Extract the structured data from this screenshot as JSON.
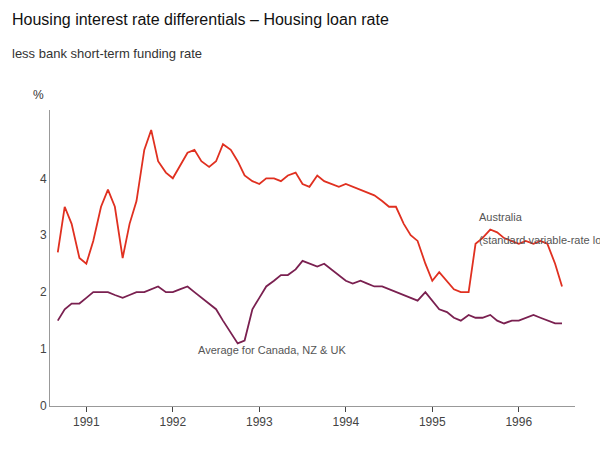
{
  "chart_data": {
    "type": "line",
    "title": "Housing interest rate differentials – Housing loan rate",
    "subtitle": "less bank short-term funding rate",
    "ylabel": "%",
    "xlim": [
      1990.58,
      1996.65
    ],
    "xticks": [
      1991,
      1992,
      1993,
      1994,
      1995,
      1996
    ],
    "ylim": [
      0,
      5.2
    ],
    "yticks": [
      0,
      1,
      2,
      3,
      4
    ],
    "grid": false,
    "x": [
      1990.67,
      1990.75,
      1990.83,
      1990.92,
      1991.0,
      1991.08,
      1991.17,
      1991.25,
      1991.33,
      1991.42,
      1991.5,
      1991.58,
      1991.67,
      1991.75,
      1991.83,
      1991.92,
      1992.0,
      1992.08,
      1992.17,
      1992.25,
      1992.33,
      1992.42,
      1992.5,
      1992.58,
      1992.67,
      1992.75,
      1992.83,
      1992.92,
      1993.0,
      1993.08,
      1993.17,
      1993.25,
      1993.33,
      1993.42,
      1993.5,
      1993.58,
      1993.67,
      1993.75,
      1993.83,
      1993.92,
      1994.0,
      1994.08,
      1994.17,
      1994.25,
      1994.33,
      1994.42,
      1994.5,
      1994.58,
      1994.67,
      1994.75,
      1994.83,
      1994.92,
      1995.0,
      1995.08,
      1995.17,
      1995.25,
      1995.33,
      1995.42,
      1995.5,
      1995.58,
      1995.67,
      1995.75,
      1995.83,
      1995.92,
      1996.0,
      1996.08,
      1996.17,
      1996.25,
      1996.33,
      1996.42,
      1996.5
    ],
    "series": [
      {
        "color": "#e03020",
        "values": [
          2.7,
          3.5,
          3.2,
          2.6,
          2.5,
          2.9,
          3.5,
          3.8,
          3.5,
          2.6,
          3.2,
          3.6,
          4.5,
          4.85,
          4.3,
          4.1,
          4.0,
          4.2,
          4.45,
          4.5,
          4.3,
          4.2,
          4.3,
          4.6,
          4.5,
          4.3,
          4.05,
          3.95,
          3.9,
          4.0,
          4.0,
          3.95,
          4.05,
          4.1,
          3.9,
          3.85,
          4.05,
          3.95,
          3.9,
          3.85,
          3.9,
          3.85,
          3.8,
          3.75,
          3.7,
          3.6,
          3.5,
          3.5,
          3.2,
          3.0,
          2.9,
          2.5,
          2.2,
          2.35,
          2.2,
          2.05,
          2.0,
          2.0,
          2.85,
          2.95,
          3.1,
          3.05,
          2.95,
          2.9,
          2.85,
          2.9,
          2.85,
          2.9,
          2.85,
          2.5,
          2.1
        ]
      },
      {
        "color": "#7a2050",
        "values": [
          1.5,
          1.7,
          1.8,
          1.8,
          1.9,
          2.0,
          2.0,
          2.0,
          1.95,
          1.9,
          1.95,
          2.0,
          2.0,
          2.05,
          2.1,
          2.0,
          2.0,
          2.05,
          2.1,
          2.0,
          1.9,
          1.8,
          1.7,
          1.5,
          1.3,
          1.1,
          1.15,
          1.7,
          1.9,
          2.1,
          2.2,
          2.3,
          2.3,
          2.4,
          2.55,
          2.5,
          2.45,
          2.5,
          2.4,
          2.3,
          2.2,
          2.15,
          2.2,
          2.15,
          2.1,
          2.1,
          2.05,
          2.0,
          1.95,
          1.9,
          1.85,
          2.0,
          1.85,
          1.7,
          1.65,
          1.55,
          1.5,
          1.6,
          1.55,
          1.55,
          1.6,
          1.5,
          1.45,
          1.5,
          1.5,
          1.55,
          1.6,
          1.55,
          1.5,
          1.45,
          1.45
        ]
      }
    ],
    "annotations": [
      {
        "text": "Australia",
        "x": 1995.52,
        "y": 3.18
      },
      {
        "text": "(standard variable-rate loan)",
        "x": 1995.52,
        "y": 3.05
      },
      {
        "text": "Average for Canada, NZ & UK",
        "x": 1993.15,
        "y": 1.12
      }
    ]
  }
}
